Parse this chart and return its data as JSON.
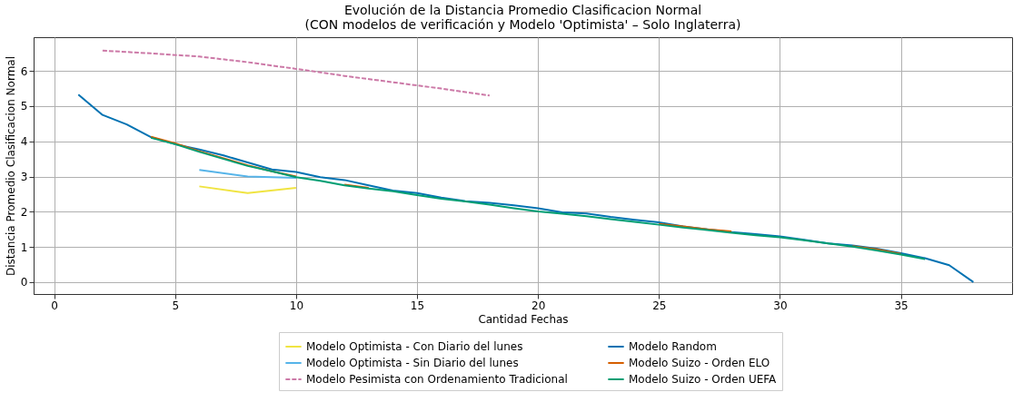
{
  "chart_data": {
    "type": "line",
    "title": "Evolución de la Distancia Promedio Clasificacion Normal\n(CON modelos de verificación y Modelo 'Optimista' – Solo Inglaterra)",
    "xlabel": "Cantidad Fechas",
    "ylabel": "Distancia Promedio Clasificacion Normal",
    "xlim": [
      -0.85,
      39.6
    ],
    "ylim": [
      -0.34,
      6.96
    ],
    "xticks": [
      0,
      5,
      10,
      15,
      20,
      25,
      30,
      35
    ],
    "yticks": [
      0,
      1,
      2,
      3,
      4,
      5,
      6
    ],
    "grid": true,
    "legend": "bottom",
    "marker": "none",
    "series": [
      {
        "name": "Modelo Optimista - Con Diario del lunes",
        "color": "#f0e442",
        "x": [
          6,
          8,
          10
        ],
        "values": [
          2.72,
          2.53,
          2.68
        ]
      },
      {
        "name": "Modelo Optimista - Sin Diario del lunes",
        "color": "#56b4e9",
        "x": [
          6,
          8,
          10
        ],
        "values": [
          3.19,
          3.0,
          2.96
        ]
      },
      {
        "name": "Modelo Pesimista con Ordenamiento Tradicional",
        "color": "#cc79a7",
        "line_style": "dashed",
        "x": [
          2,
          4,
          6,
          8,
          10,
          12,
          14,
          16,
          18
        ],
        "values": [
          6.58,
          6.5,
          6.41,
          6.25,
          6.06,
          5.86,
          5.68,
          5.5,
          5.3
        ]
      },
      {
        "name": "Modelo Random",
        "color": "#0072b2",
        "x": [
          1,
          2,
          3,
          4,
          5,
          6,
          7,
          8,
          9,
          10,
          11,
          12,
          13,
          14,
          15,
          16,
          17,
          18,
          19,
          20,
          21,
          22,
          23,
          24,
          25,
          26,
          27,
          28,
          29,
          30,
          31,
          32,
          33,
          34,
          35,
          36,
          37,
          38
        ],
        "values": [
          5.33,
          4.75,
          4.48,
          4.12,
          3.92,
          3.77,
          3.6,
          3.4,
          3.2,
          3.13,
          2.98,
          2.9,
          2.75,
          2.6,
          2.53,
          2.4,
          2.3,
          2.25,
          2.18,
          2.1,
          1.98,
          1.95,
          1.85,
          1.77,
          1.7,
          1.58,
          1.5,
          1.42,
          1.36,
          1.3,
          1.2,
          1.1,
          1.04,
          0.95,
          0.82,
          0.68,
          0.48,
          0.0
        ]
      },
      {
        "name": "Modelo Suizo - Orden ELO",
        "color": "#d55e00",
        "x": [
          4,
          5,
          6,
          7,
          8,
          9,
          10,
          11,
          12,
          13,
          14,
          15,
          16,
          17,
          18,
          19,
          20,
          21,
          22,
          23,
          24,
          25,
          26,
          27,
          28,
          29,
          30,
          31,
          32,
          33,
          34,
          35
        ],
        "values": [
          4.13,
          3.94,
          3.72,
          3.52,
          3.32,
          3.15,
          3.0,
          null,
          2.77,
          2.68,
          null,
          null,
          null,
          null,
          null,
          null,
          null,
          null,
          null,
          null,
          null,
          1.65,
          1.58,
          1.5,
          1.44,
          null,
          null,
          null,
          null,
          1.02,
          0.93,
          0.8
        ]
      },
      {
        "name": "Modelo Suizo - Orden UEFA",
        "color": "#009e73",
        "x": [
          4,
          5,
          6,
          7,
          8,
          9,
          10,
          11,
          12,
          13,
          14,
          15,
          16,
          17,
          18,
          19,
          20,
          21,
          22,
          23,
          24,
          25,
          26,
          27,
          28,
          29,
          30,
          31,
          32,
          33,
          34,
          35,
          36
        ],
        "values": [
          4.1,
          3.92,
          3.7,
          3.5,
          3.3,
          3.15,
          2.98,
          2.88,
          2.75,
          2.66,
          2.58,
          2.47,
          2.37,
          2.29,
          2.2,
          2.1,
          2.01,
          1.94,
          1.87,
          1.79,
          1.71,
          1.63,
          1.55,
          1.48,
          1.4,
          1.33,
          1.27,
          1.19,
          1.1,
          1.01,
          0.9,
          0.78,
          0.65
        ]
      }
    ]
  }
}
